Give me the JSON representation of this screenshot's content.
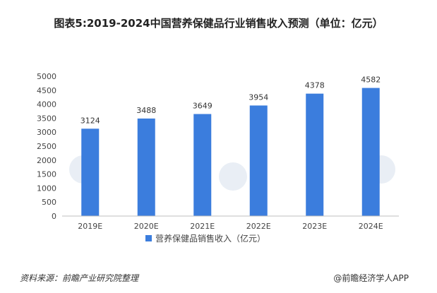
{
  "title": "图表5:2019-2024中国营养保健品行业销售收入预测（单位：亿元）",
  "footer": {
    "source": "资料来源：前瞻产业研究院整理",
    "credit": "@前瞻经济学人APP"
  },
  "colors": {
    "bar": "#3b7ddd"
  },
  "chart_data": {
    "type": "bar",
    "categories": [
      "2019E",
      "2020E",
      "2021E",
      "2022E",
      "2023E",
      "2024E"
    ],
    "series": [
      {
        "name": "营养保健品销售收入（亿元）",
        "values": [
          3124,
          3488,
          3649,
          3954,
          4378,
          4582
        ]
      }
    ],
    "ylim": [
      0,
      5000
    ],
    "yticks": [
      0,
      500,
      1000,
      1500,
      2000,
      2500,
      3000,
      3500,
      4000,
      4500,
      5000
    ],
    "legend": "bottom",
    "grid": false
  }
}
